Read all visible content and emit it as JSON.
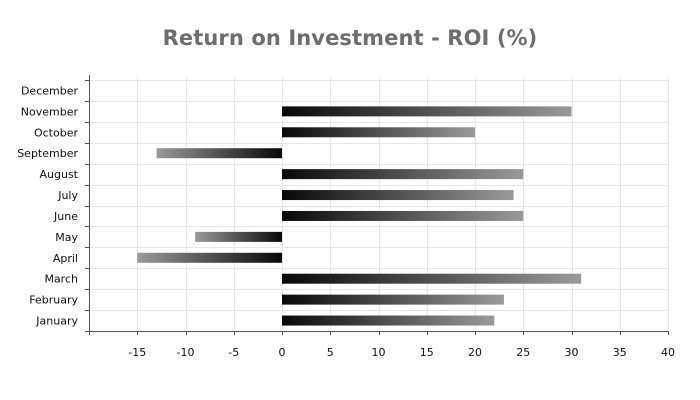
{
  "title": "Return on Investment - ROI (%)",
  "chart_data": {
    "type": "bar",
    "orientation": "horizontal",
    "title": "Return on Investment - ROI (%)",
    "xlabel": "",
    "ylabel": "",
    "categories": [
      "January",
      "February",
      "March",
      "April",
      "May",
      "June",
      "July",
      "August",
      "September",
      "October",
      "November",
      "December"
    ],
    "values": [
      22,
      23,
      31,
      -15,
      -9,
      25,
      24,
      25,
      -13,
      20,
      30,
      null
    ],
    "xlim": [
      -20,
      40
    ],
    "xticks": [
      -15,
      -10,
      -5,
      0,
      5,
      10,
      15,
      20,
      25,
      30,
      35,
      40
    ],
    "grid": true,
    "legend": "none",
    "colors": {
      "bar_dark": "#080808",
      "bar_light": "#9a9a9a",
      "grid": "#e6e6e6",
      "axis": "#555555",
      "title": "#6e6e6e",
      "text": "#111111"
    }
  }
}
